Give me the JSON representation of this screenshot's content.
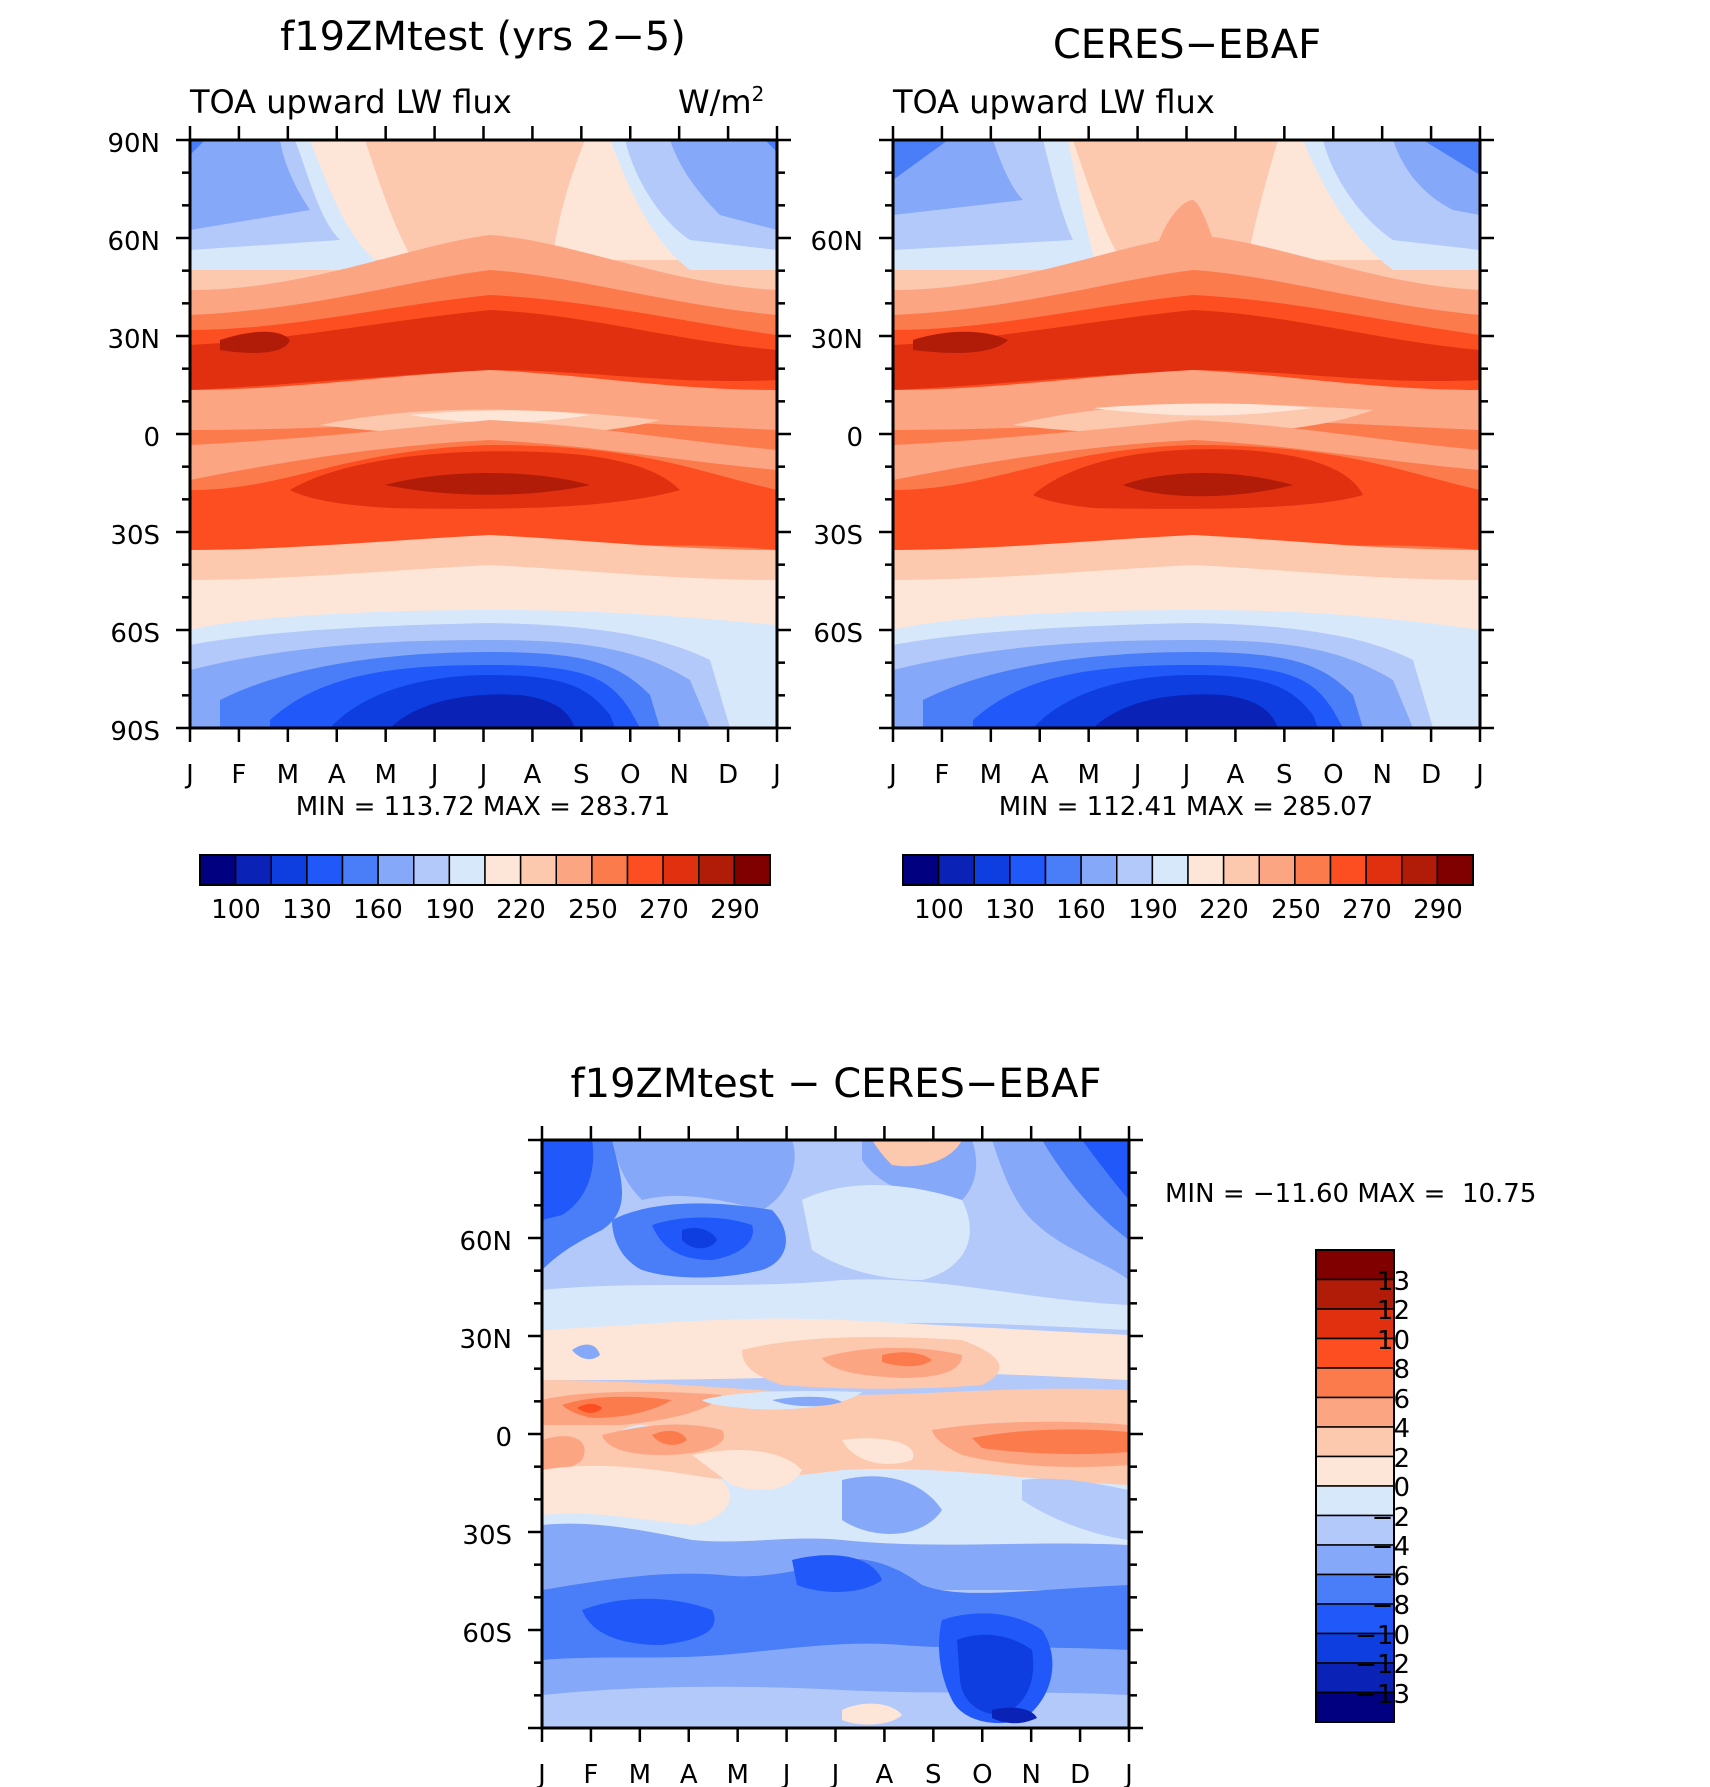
{
  "chart_data": [
    {
      "type": "heatmap",
      "title": "f19ZMtest (yrs 2-5)",
      "subtitle_left": "TOA upward LW flux",
      "units": "W/m",
      "units_exponent": "2",
      "stats": "MIN = 113.72 MAX = 283.71",
      "x_ticks": [
        "J",
        "F",
        "M",
        "A",
        "M",
        "J",
        "J",
        "A",
        "S",
        "O",
        "N",
        "D",
        "J"
      ],
      "y_ticks": [
        "90N",
        "60N",
        "30N",
        "0",
        "30S",
        "60S",
        "90S"
      ],
      "y_range": [
        -90,
        90
      ],
      "colorbar": {
        "labels": [
          "100",
          "130",
          "160",
          "190",
          "220",
          "250",
          "270",
          "290"
        ],
        "colors": [
          "#000080",
          "#0a22b6",
          "#0e3ee0",
          "#2058fa",
          "#4a7ef8",
          "#86a8f8",
          "#b2c9fa",
          "#d8e8fb",
          "#fde6d8",
          "#fcc8ae",
          "#fca583",
          "#fc7b4d",
          "#fc4e20",
          "#e03010",
          "#b01c08",
          "#800000"
        ]
      }
    },
    {
      "type": "heatmap",
      "title": "CERES-EBAF",
      "subtitle_left": "TOA upward LW flux",
      "stats": "MIN = 112.41 MAX = 285.07",
      "x_ticks": [
        "J",
        "F",
        "M",
        "A",
        "M",
        "J",
        "J",
        "A",
        "S",
        "O",
        "N",
        "D",
        "J"
      ],
      "y_ticks": [
        "60N",
        "30N",
        "0",
        "30S",
        "60S"
      ],
      "y_range": [
        -90,
        90
      ],
      "colorbar": {
        "labels": [
          "100",
          "130",
          "160",
          "190",
          "220",
          "250",
          "270",
          "290"
        ],
        "colors": [
          "#000080",
          "#0a22b6",
          "#0e3ee0",
          "#2058fa",
          "#4a7ef8",
          "#86a8f8",
          "#b2c9fa",
          "#d8e8fb",
          "#fde6d8",
          "#fcc8ae",
          "#fca583",
          "#fc7b4d",
          "#fc4e20",
          "#e03010",
          "#b01c08",
          "#800000"
        ]
      }
    },
    {
      "type": "heatmap",
      "title": "f19ZMtest - CERES-EBAF",
      "stats": "MIN = -11.60 MAX =  10.75",
      "x_ticks": [
        "J",
        "F",
        "M",
        "A",
        "M",
        "J",
        "J",
        "A",
        "S",
        "O",
        "N",
        "D",
        "J"
      ],
      "y_ticks": [
        "60N",
        "30N",
        "0",
        "30S",
        "60S"
      ],
      "y_range": [
        -90,
        90
      ],
      "colorbar": {
        "labels": [
          "13",
          "12",
          "10",
          "8",
          "6",
          "4",
          "2",
          "0",
          "-2",
          "-4",
          "-6",
          "-8",
          "-10",
          "-12",
          "-13"
        ],
        "colors": [
          "#800000",
          "#b01c08",
          "#e03010",
          "#fc4e20",
          "#fc7b4d",
          "#fca583",
          "#fcc8ae",
          "#fde6d8",
          "#d8e8fb",
          "#b2c9fa",
          "#86a8f8",
          "#4a7ef8",
          "#2058fa",
          "#0e3ee0",
          "#0a22b6",
          "#000080"
        ]
      }
    }
  ]
}
